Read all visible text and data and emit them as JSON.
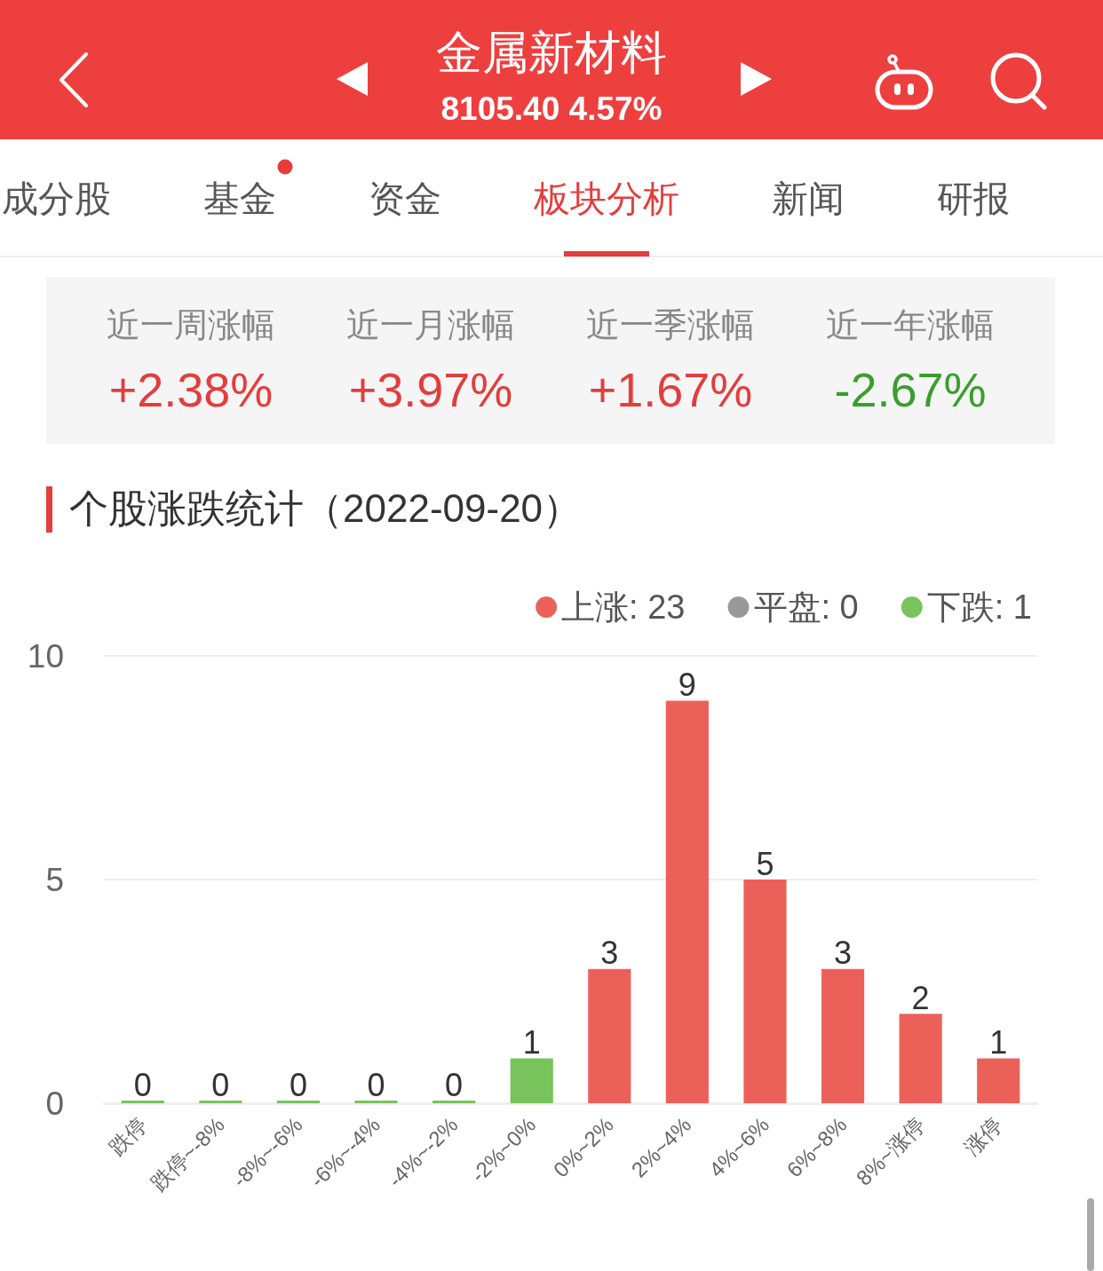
{
  "chart_data": [
    {
      "type": "other",
      "title": "金属新材料",
      "subtitle": "8105.40 4.57%",
      "annotations": [
        "成分股",
        "基金",
        "资金",
        "板块分析",
        "新闻",
        "研报"
      ],
      "categories": [
        "近一周涨幅",
        "近一月涨幅",
        "近一季涨幅",
        "近一年涨幅"
      ],
      "values": [
        2.38,
        3.97,
        1.67,
        -2.67
      ],
      "value_labels": [
        "+2.38%",
        "+3.97%",
        "+1.67%",
        "-2.67%"
      ]
    },
    {
      "type": "bar",
      "title": "个股涨跌统计（2022-09-20）",
      "categories": [
        "跌停",
        "跌停~-8%",
        "-8%~-6%",
        "-6%~-4%",
        "-4%~-2%",
        "-2%~0%",
        "0%~2%",
        "2%~4%",
        "4%~6%",
        "6%~8%",
        "8%~涨停",
        "涨停"
      ],
      "series": [
        {
          "name": "上涨: 23",
          "color": "#eb615a",
          "values": [
            null,
            null,
            null,
            null,
            null,
            null,
            3,
            9,
            5,
            3,
            2,
            1
          ]
        },
        {
          "name": "平盘: 0",
          "color": "#999999",
          "values": [
            null,
            null,
            null,
            null,
            null,
            null,
            null,
            null,
            null,
            null,
            null,
            null
          ]
        },
        {
          "name": "下跌: 1",
          "color": "#78c35c",
          "values": [
            0,
            0,
            0,
            0,
            0,
            1,
            null,
            null,
            null,
            null,
            null,
            null
          ]
        }
      ],
      "stacked": true,
      "ylim": [
        0,
        10
      ],
      "yticks": [
        0,
        5,
        10
      ],
      "grid": "y",
      "legend": "top right",
      "data_labels": true
    }
  ]
}
